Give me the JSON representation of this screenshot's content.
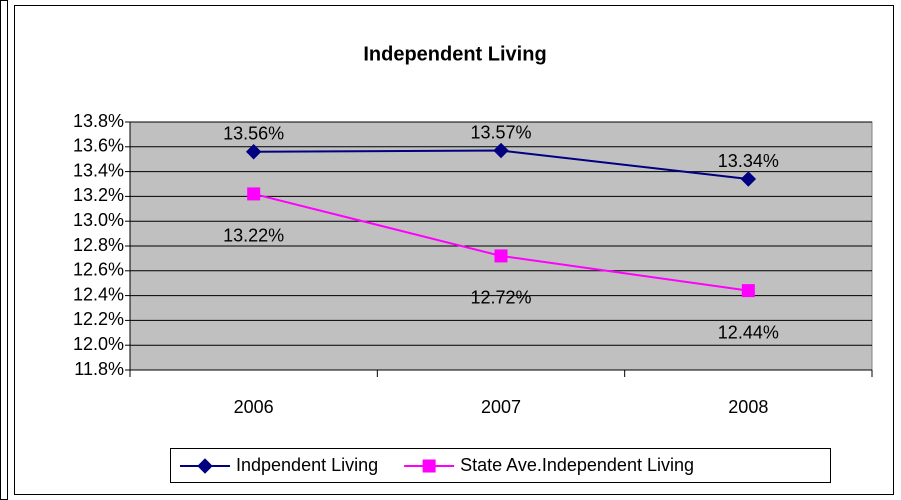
{
  "chart_data": {
    "type": "line",
    "title": "Independent Living",
    "categories": [
      "2006",
      "2007",
      "2008"
    ],
    "series": [
      {
        "name": "Indpendent Living",
        "color": "#000080",
        "marker": "diamond",
        "values": [
          13.56,
          13.57,
          13.34
        ],
        "value_labels": [
          "13.56%",
          "13.57%",
          "13.34%"
        ]
      },
      {
        "name": "State Ave.Independent Living",
        "color": "#ff00ff",
        "marker": "square",
        "values": [
          13.22,
          12.72,
          12.44
        ],
        "value_labels": [
          "13.22%",
          "12.72%",
          "12.44%"
        ]
      }
    ],
    "ylim": [
      11.8,
      13.8
    ],
    "yticks": [
      {
        "value": 11.8,
        "label": "11.8%"
      },
      {
        "value": 12.0,
        "label": "12.0%"
      },
      {
        "value": 12.2,
        "label": "12.2%"
      },
      {
        "value": 12.4,
        "label": "12.4%"
      },
      {
        "value": 12.6,
        "label": "12.6%"
      },
      {
        "value": 12.8,
        "label": "12.8%"
      },
      {
        "value": 13.0,
        "label": "13.0%"
      },
      {
        "value": 13.2,
        "label": "13.2%"
      },
      {
        "value": 13.4,
        "label": "13.4%"
      },
      {
        "value": 13.6,
        "label": "13.6%"
      },
      {
        "value": 13.8,
        "label": "13.8%"
      }
    ],
    "grid": true,
    "plot_background": "#c0c0c0",
    "legend": "bottom"
  }
}
